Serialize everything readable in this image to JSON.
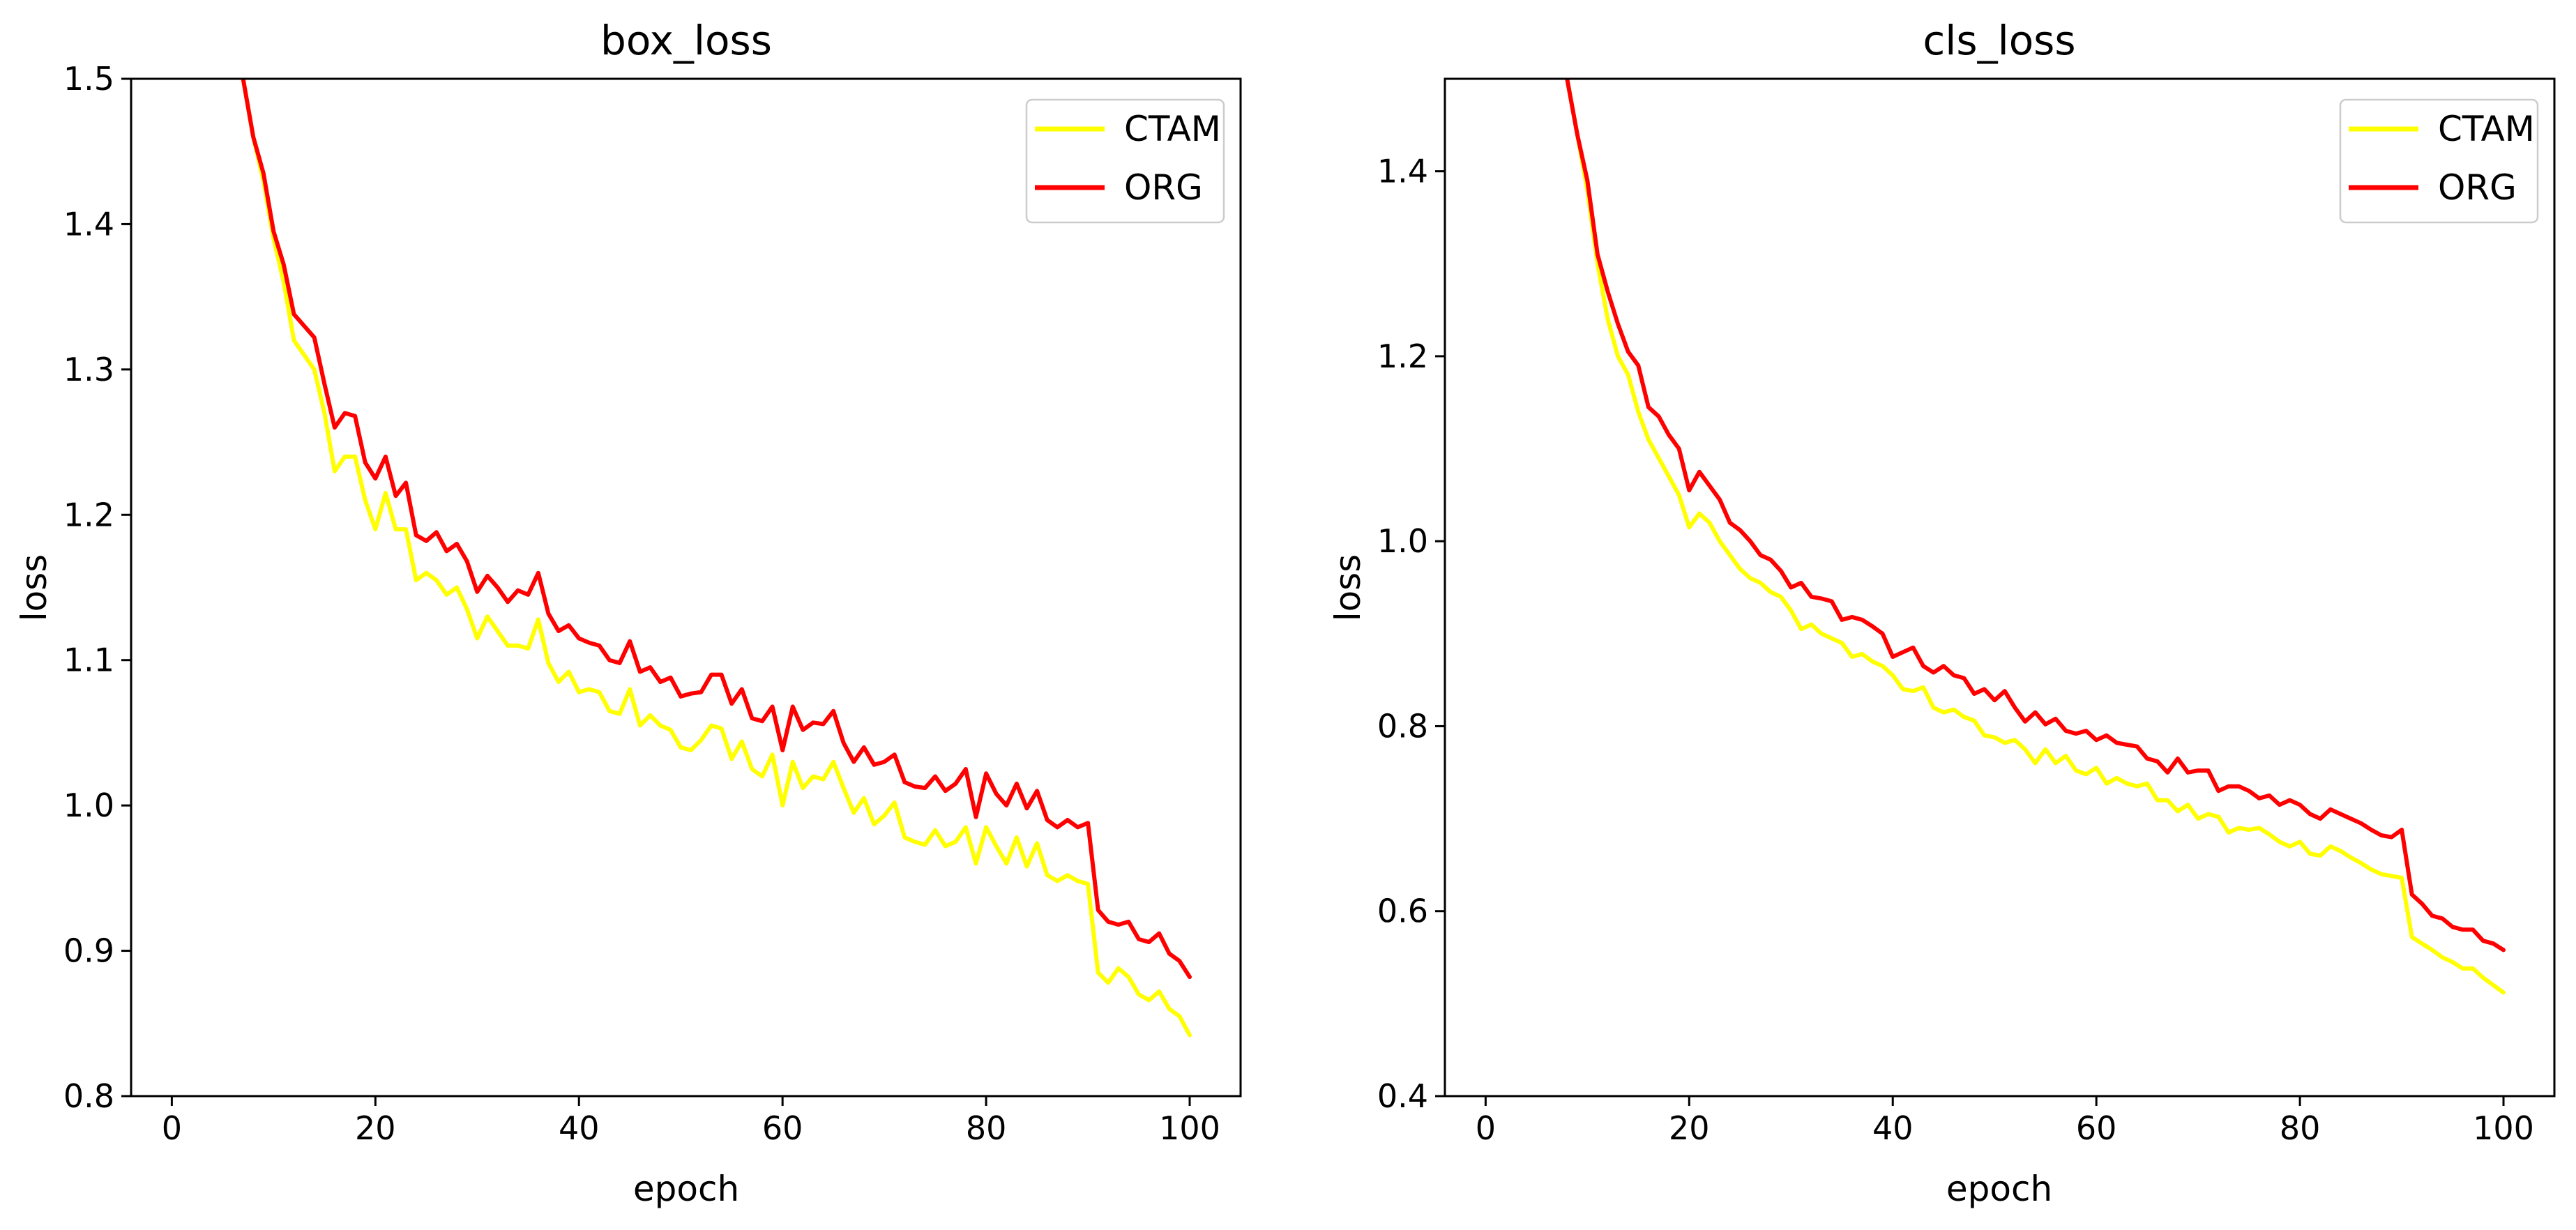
{
  "chart_data": [
    {
      "type": "line",
      "title": "box_loss",
      "xlabel": "epoch",
      "ylabel": "loss",
      "xlim": [
        -4,
        105
      ],
      "ylim": [
        0.8,
        1.5
      ],
      "xticks": [
        0,
        20,
        40,
        60,
        80,
        100
      ],
      "xtick_labels": [
        "0",
        "20",
        "40",
        "60",
        "80",
        "100"
      ],
      "yticks": [
        0.8,
        0.9,
        1.0,
        1.1,
        1.2,
        1.3,
        1.4,
        1.5
      ],
      "ytick_labels": [
        "0.8",
        "0.9",
        "1.0",
        "1.1",
        "1.2",
        "1.3",
        "1.4",
        "1.5"
      ],
      "grid": false,
      "legend_position": "top-right",
      "series": [
        {
          "name": "CTAM",
          "color": "#ffff00",
          "x": [
            7,
            8,
            9,
            10,
            11,
            12,
            13,
            14,
            15,
            16,
            17,
            18,
            19,
            20,
            21,
            22,
            23,
            24,
            25,
            26,
            27,
            28,
            29,
            30,
            31,
            32,
            33,
            34,
            35,
            36,
            37,
            38,
            39,
            40,
            41,
            42,
            43,
            44,
            45,
            46,
            47,
            48,
            49,
            50,
            51,
            52,
            53,
            54,
            55,
            56,
            57,
            58,
            59,
            60,
            61,
            62,
            63,
            64,
            65,
            66,
            67,
            68,
            69,
            70,
            71,
            72,
            73,
            74,
            75,
            76,
            77,
            78,
            79,
            80,
            81,
            82,
            83,
            84,
            85,
            86,
            87,
            88,
            89,
            90,
            91,
            92,
            93,
            94,
            95,
            96,
            97,
            98,
            99,
            100
          ],
          "y": [
            1.5,
            1.46,
            1.43,
            1.39,
            1.36,
            1.32,
            1.31,
            1.3,
            1.27,
            1.23,
            1.24,
            1.24,
            1.21,
            1.19,
            1.215,
            1.19,
            1.19,
            1.155,
            1.16,
            1.155,
            1.145,
            1.15,
            1.135,
            1.115,
            1.13,
            1.12,
            1.11,
            1.11,
            1.108,
            1.128,
            1.098,
            1.085,
            1.092,
            1.078,
            1.08,
            1.078,
            1.065,
            1.063,
            1.08,
            1.055,
            1.062,
            1.055,
            1.052,
            1.04,
            1.038,
            1.045,
            1.055,
            1.053,
            1.032,
            1.044,
            1.025,
            1.02,
            1.035,
            1.0,
            1.03,
            1.012,
            1.02,
            1.018,
            1.03,
            1.012,
            0.995,
            1.005,
            0.987,
            0.993,
            1.002,
            0.978,
            0.975,
            0.973,
            0.983,
            0.972,
            0.975,
            0.985,
            0.96,
            0.985,
            0.972,
            0.96,
            0.978,
            0.958,
            0.974,
            0.952,
            0.948,
            0.952,
            0.948,
            0.946,
            0.885,
            0.878,
            0.888,
            0.882,
            0.87,
            0.866,
            0.872,
            0.86,
            0.855,
            0.842
          ]
        },
        {
          "name": "ORG",
          "color": "#ff0000",
          "x": [
            7,
            8,
            9,
            10,
            11,
            12,
            13,
            14,
            15,
            16,
            17,
            18,
            19,
            20,
            21,
            22,
            23,
            24,
            25,
            26,
            27,
            28,
            29,
            30,
            31,
            32,
            33,
            34,
            35,
            36,
            37,
            38,
            39,
            40,
            41,
            42,
            43,
            44,
            45,
            46,
            47,
            48,
            49,
            50,
            51,
            52,
            53,
            54,
            55,
            56,
            57,
            58,
            59,
            60,
            61,
            62,
            63,
            64,
            65,
            66,
            67,
            68,
            69,
            70,
            71,
            72,
            73,
            74,
            75,
            76,
            77,
            78,
            79,
            80,
            81,
            82,
            83,
            84,
            85,
            86,
            87,
            88,
            89,
            90,
            91,
            92,
            93,
            94,
            95,
            96,
            97,
            98,
            99,
            100
          ],
          "y": [
            1.5,
            1.46,
            1.435,
            1.395,
            1.372,
            1.338,
            1.33,
            1.322,
            1.29,
            1.26,
            1.27,
            1.268,
            1.236,
            1.225,
            1.24,
            1.213,
            1.222,
            1.186,
            1.182,
            1.188,
            1.175,
            1.18,
            1.168,
            1.147,
            1.158,
            1.15,
            1.14,
            1.148,
            1.145,
            1.16,
            1.132,
            1.12,
            1.124,
            1.115,
            1.112,
            1.11,
            1.1,
            1.098,
            1.113,
            1.092,
            1.095,
            1.085,
            1.088,
            1.075,
            1.077,
            1.078,
            1.09,
            1.09,
            1.07,
            1.08,
            1.06,
            1.058,
            1.068,
            1.038,
            1.068,
            1.052,
            1.057,
            1.056,
            1.065,
            1.043,
            1.03,
            1.04,
            1.028,
            1.03,
            1.035,
            1.016,
            1.013,
            1.012,
            1.02,
            1.01,
            1.015,
            1.025,
            0.992,
            1.022,
            1.008,
            1.0,
            1.015,
            0.998,
            1.01,
            0.99,
            0.985,
            0.99,
            0.985,
            0.988,
            0.928,
            0.92,
            0.918,
            0.92,
            0.908,
            0.906,
            0.912,
            0.898,
            0.893,
            0.882
          ]
        }
      ]
    },
    {
      "type": "line",
      "title": "cls_loss",
      "xlabel": "epoch",
      "ylabel": "loss",
      "xlim": [
        -4,
        105
      ],
      "ylim": [
        0.4,
        1.5
      ],
      "xticks": [
        0,
        20,
        40,
        60,
        80,
        100
      ],
      "xtick_labels": [
        "0",
        "20",
        "40",
        "60",
        "80",
        "100"
      ],
      "yticks": [
        0.4,
        0.6,
        0.8,
        1.0,
        1.2,
        1.4
      ],
      "ytick_labels": [
        "0.4",
        "0.6",
        "0.8",
        "1.0",
        "1.2",
        "1.4"
      ],
      "grid": false,
      "legend_position": "top-right",
      "series": [
        {
          "name": "CTAM",
          "color": "#ffff00",
          "x": [
            8,
            9,
            10,
            11,
            12,
            13,
            14,
            15,
            16,
            17,
            18,
            19,
            20,
            21,
            22,
            23,
            24,
            25,
            26,
            27,
            28,
            29,
            30,
            31,
            32,
            33,
            34,
            35,
            36,
            37,
            38,
            39,
            40,
            41,
            42,
            43,
            44,
            45,
            46,
            47,
            48,
            49,
            50,
            51,
            52,
            53,
            54,
            55,
            56,
            57,
            58,
            59,
            60,
            61,
            62,
            63,
            64,
            65,
            66,
            67,
            68,
            69,
            70,
            71,
            72,
            73,
            74,
            75,
            76,
            77,
            78,
            79,
            80,
            81,
            82,
            83,
            84,
            85,
            86,
            87,
            88,
            89,
            90,
            91,
            92,
            93,
            94,
            95,
            96,
            97,
            98,
            99,
            100
          ],
          "y": [
            1.5,
            1.44,
            1.38,
            1.3,
            1.24,
            1.2,
            1.18,
            1.14,
            1.11,
            1.09,
            1.07,
            1.05,
            1.015,
            1.03,
            1.02,
            1.0,
            0.985,
            0.97,
            0.96,
            0.955,
            0.945,
            0.94,
            0.925,
            0.905,
            0.91,
            0.9,
            0.895,
            0.89,
            0.875,
            0.878,
            0.87,
            0.865,
            0.855,
            0.84,
            0.838,
            0.842,
            0.82,
            0.815,
            0.818,
            0.81,
            0.806,
            0.79,
            0.788,
            0.782,
            0.785,
            0.775,
            0.76,
            0.775,
            0.76,
            0.768,
            0.752,
            0.748,
            0.755,
            0.738,
            0.744,
            0.738,
            0.735,
            0.738,
            0.72,
            0.72,
            0.708,
            0.715,
            0.7,
            0.705,
            0.702,
            0.685,
            0.69,
            0.688,
            0.69,
            0.683,
            0.675,
            0.67,
            0.675,
            0.662,
            0.66,
            0.67,
            0.665,
            0.658,
            0.652,
            0.645,
            0.64,
            0.638,
            0.636,
            0.572,
            0.565,
            0.558,
            0.55,
            0.545,
            0.538,
            0.538,
            0.528,
            0.52,
            0.512
          ]
        },
        {
          "name": "ORG",
          "color": "#ff0000",
          "x": [
            8,
            9,
            10,
            11,
            12,
            13,
            14,
            15,
            16,
            17,
            18,
            19,
            20,
            21,
            22,
            23,
            24,
            25,
            26,
            27,
            28,
            29,
            30,
            31,
            32,
            33,
            34,
            35,
            36,
            37,
            38,
            39,
            40,
            41,
            42,
            43,
            44,
            45,
            46,
            47,
            48,
            49,
            50,
            51,
            52,
            53,
            54,
            55,
            56,
            57,
            58,
            59,
            60,
            61,
            62,
            63,
            64,
            65,
            66,
            67,
            68,
            69,
            70,
            71,
            72,
            73,
            74,
            75,
            76,
            77,
            78,
            79,
            80,
            81,
            82,
            83,
            84,
            85,
            86,
            87,
            88,
            89,
            90,
            91,
            92,
            93,
            94,
            95,
            96,
            97,
            98,
            99,
            100
          ],
          "y": [
            1.5,
            1.44,
            1.39,
            1.31,
            1.27,
            1.235,
            1.205,
            1.19,
            1.145,
            1.135,
            1.115,
            1.1,
            1.055,
            1.075,
            1.06,
            1.045,
            1.02,
            1.012,
            1.0,
            0.985,
            0.98,
            0.968,
            0.95,
            0.955,
            0.94,
            0.938,
            0.935,
            0.915,
            0.918,
            0.915,
            0.908,
            0.9,
            0.875,
            0.88,
            0.885,
            0.865,
            0.858,
            0.865,
            0.855,
            0.852,
            0.835,
            0.84,
            0.828,
            0.838,
            0.82,
            0.805,
            0.815,
            0.802,
            0.808,
            0.795,
            0.792,
            0.795,
            0.785,
            0.79,
            0.782,
            0.78,
            0.778,
            0.765,
            0.762,
            0.75,
            0.765,
            0.75,
            0.752,
            0.752,
            0.73,
            0.735,
            0.735,
            0.73,
            0.722,
            0.725,
            0.715,
            0.72,
            0.715,
            0.705,
            0.7,
            0.71,
            0.705,
            0.7,
            0.695,
            0.688,
            0.682,
            0.68,
            0.688,
            0.618,
            0.608,
            0.595,
            0.592,
            0.583,
            0.58,
            0.58,
            0.568,
            0.565,
            0.558
          ]
        }
      ]
    }
  ]
}
